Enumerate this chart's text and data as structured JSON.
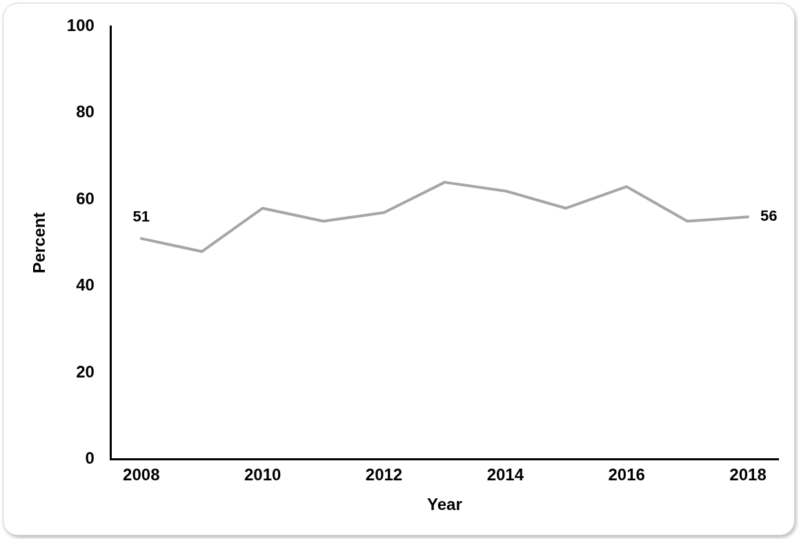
{
  "chart_data": {
    "type": "line",
    "xlabel": "Year",
    "ylabel": "Percent",
    "x": [
      2008,
      2009,
      2010,
      2011,
      2012,
      2013,
      2014,
      2015,
      2016,
      2017,
      2018
    ],
    "series": [
      {
        "color": "#a6a6a6",
        "values": [
          51,
          48,
          58,
          55,
          57,
          64,
          62,
          58,
          63,
          55,
          56
        ],
        "value_labels": [
          "51",
          null,
          null,
          null,
          null,
          null,
          null,
          null,
          null,
          null,
          "56"
        ]
      }
    ],
    "xlim": [
      2007.5,
      2018.5
    ],
    "xticks": [
      2008,
      2010,
      2012,
      2014,
      2016,
      2018
    ],
    "ylim": [
      0,
      100
    ],
    "yticks": [
      0,
      20,
      40,
      60,
      80,
      100
    ],
    "grid": false,
    "legend": false,
    "marker": "none",
    "line_style": "solid"
  }
}
